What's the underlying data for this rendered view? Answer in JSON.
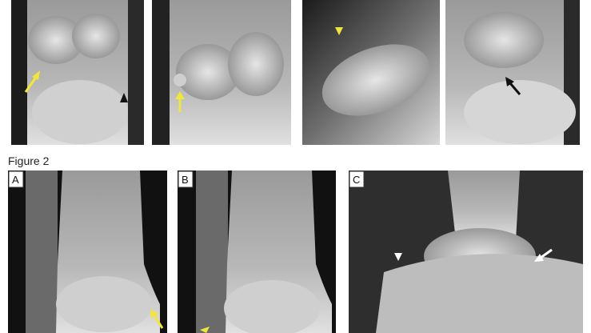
{
  "figure": {
    "caption": "Figure 2",
    "panels": [
      {
        "label": "A"
      },
      {
        "label": "B"
      },
      {
        "label": "C"
      }
    ]
  }
}
